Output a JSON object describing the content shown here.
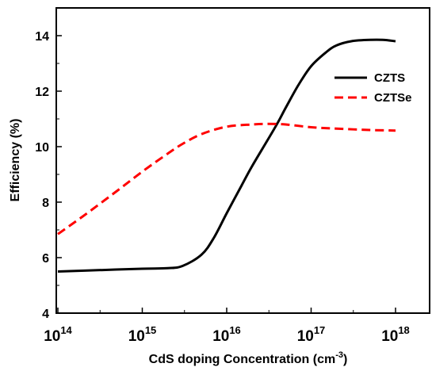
{
  "chart_data": {
    "type": "line",
    "xlabel": "CdS doping Concentration (cm",
    "xlabel_sup": "-3",
    "xlabel_end": ")",
    "ylabel": "Efficiency (%)",
    "x_scale": "log",
    "xlim": [
      100000000000000.0,
      3e+18
    ],
    "ylim": [
      4,
      15
    ],
    "x_ticks": [
      {
        "value": 100000000000000.0,
        "base": "10",
        "exp": "14"
      },
      {
        "value": 1000000000000000.0,
        "base": "10",
        "exp": "15"
      },
      {
        "value": 1e+16,
        "base": "10",
        "exp": "16"
      },
      {
        "value": 1e+17,
        "base": "10",
        "exp": "17"
      },
      {
        "value": 1e+18,
        "base": "10",
        "exp": "18"
      }
    ],
    "y_ticks": [
      "4",
      "6",
      "8",
      "10",
      "12",
      "14"
    ],
    "grid": false,
    "legend_position": "top-right",
    "series": [
      {
        "name": "CZTS",
        "color": "#000000",
        "dash": "solid",
        "x": [
          100000000000000.0,
          300000000000000.0,
          1000000000000000.0,
          2000000000000000.0,
          3000000000000000.0,
          5000000000000000.0,
          7000000000000000.0,
          1e+16,
          1.5e+16,
          2e+16,
          3e+16,
          4e+16,
          5e+16,
          7e+16,
          1e+17,
          1.5e+17,
          2e+17,
          3e+17,
          5e+17,
          7e+17,
          1e+18
        ],
        "y": [
          5.5,
          5.55,
          5.6,
          5.62,
          5.7,
          6.1,
          6.7,
          7.6,
          8.6,
          9.3,
          10.2,
          10.85,
          11.4,
          12.2,
          12.9,
          13.4,
          13.65,
          13.8,
          13.85,
          13.85,
          13.8
        ]
      },
      {
        "name": "CZTSe",
        "color": "#ff0000",
        "dash": "dashed",
        "x": [
          100000000000000.0,
          200000000000000.0,
          500000000000000.0,
          1000000000000000.0,
          2000000000000000.0,
          3000000000000000.0,
          5000000000000000.0,
          1e+16,
          2e+16,
          3e+16,
          5e+16,
          1e+17,
          2e+17,
          5e+17,
          1e+18
        ],
        "y": [
          6.85,
          7.5,
          8.4,
          9.1,
          9.75,
          10.1,
          10.45,
          10.72,
          10.8,
          10.82,
          10.8,
          10.7,
          10.65,
          10.6,
          10.58
        ]
      }
    ]
  }
}
